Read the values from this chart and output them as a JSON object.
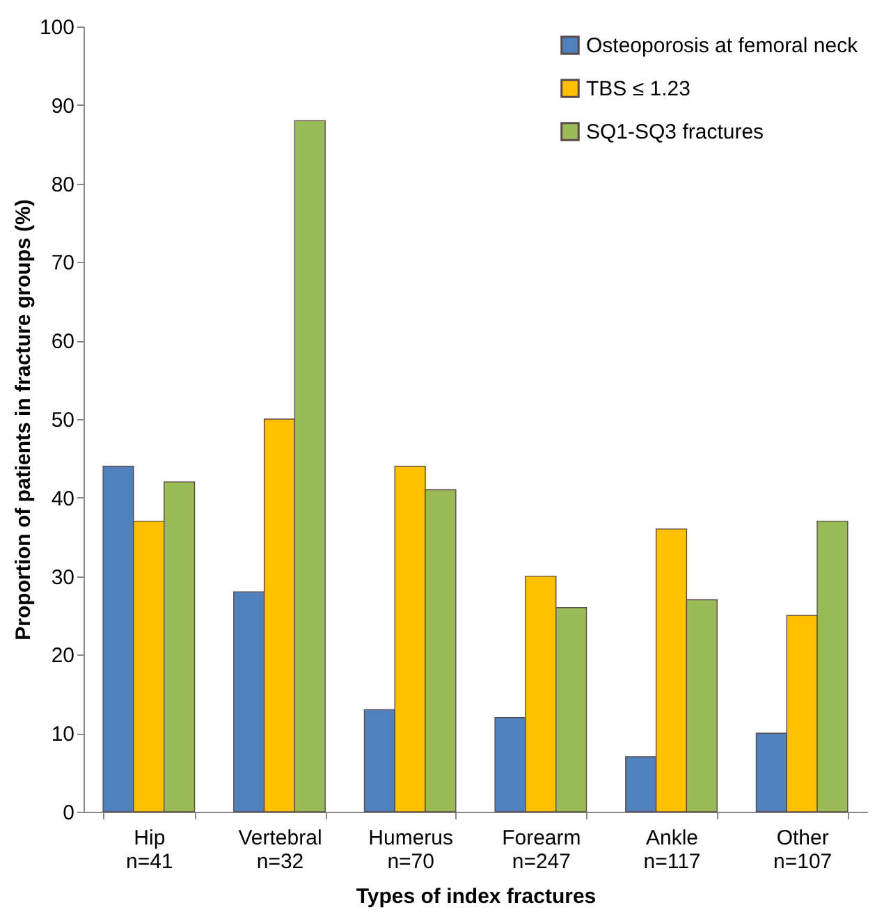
{
  "chart_data": {
    "type": "bar",
    "xlabel": "Types of index fractures",
    "ylabel": "Proportion of patients in fracture groups (%)",
    "categories": [
      "Hip\nn=41",
      "Vertebral\nn=32",
      "Humerus\nn=70",
      "Forearm\nn=247",
      "Ankle\nn=117",
      "Other\nn=107"
    ],
    "series": [
      {
        "name": "Osteoporosis at femoral neck",
        "color": "#4f81bd",
        "values": [
          44,
          28,
          13,
          12,
          7,
          10
        ]
      },
      {
        "name": "TBS ≤ 1.23",
        "color": "#ffc000",
        "values": [
          37,
          50,
          44,
          30,
          36,
          25
        ]
      },
      {
        "name": "SQ1-SQ3 fractures",
        "color": "#9bbb59",
        "values": [
          42,
          88,
          41,
          26,
          27,
          37
        ]
      }
    ],
    "ylim": [
      0,
      100
    ],
    "yticks": [
      0,
      10,
      20,
      30,
      40,
      50,
      60,
      70,
      80,
      90,
      100
    ],
    "grid": false,
    "legend": "top right"
  }
}
